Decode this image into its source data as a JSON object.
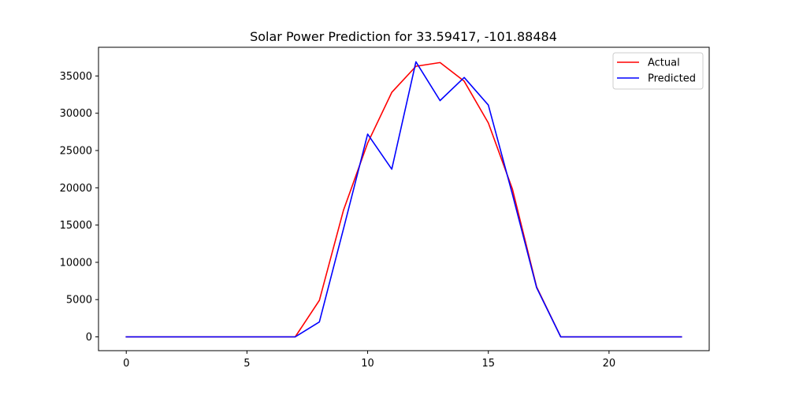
{
  "chart_data": {
    "type": "line",
    "title": "Solar Power Prediction for 33.59417, -101.88484",
    "xlabel": "",
    "ylabel": "",
    "x": [
      0,
      1,
      2,
      3,
      4,
      5,
      6,
      7,
      8,
      9,
      10,
      11,
      12,
      13,
      14,
      15,
      16,
      17,
      18,
      19,
      20,
      21,
      22,
      23
    ],
    "xlim": [
      -1.15,
      24.15
    ],
    "ylim": [
      -1850,
      38850
    ],
    "xticks": [
      0,
      5,
      10,
      15,
      20
    ],
    "yticks": [
      0,
      5000,
      10000,
      15000,
      20000,
      25000,
      30000,
      35000
    ],
    "grid": false,
    "legend_position": "top-right",
    "series": [
      {
        "name": "Actual",
        "color": "#ff0000",
        "values": [
          0,
          0,
          0,
          0,
          0,
          0,
          0,
          0,
          4900,
          17000,
          26000,
          32800,
          36300,
          36800,
          34300,
          28700,
          19800,
          6700,
          0,
          0,
          0,
          0,
          0,
          0
        ]
      },
      {
        "name": "Predicted",
        "color": "#0000ff",
        "values": [
          0,
          0,
          0,
          0,
          0,
          0,
          0,
          0,
          2000,
          14500,
          27200,
          22500,
          36900,
          31700,
          34800,
          31100,
          19100,
          6600,
          0,
          0,
          0,
          0,
          0,
          0
        ]
      }
    ]
  }
}
